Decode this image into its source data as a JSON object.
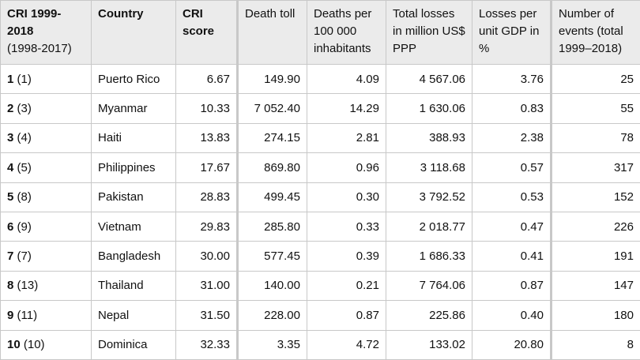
{
  "headers": [
    {
      "bold": "CRI 1999-2018",
      "normal": "(1998-2017)"
    },
    {
      "bold": "Country",
      "normal": ""
    },
    {
      "bold": "CRI score",
      "normal": ""
    },
    {
      "bold": "",
      "normal": "Death toll"
    },
    {
      "bold": "",
      "normal": "Deaths per 100 000 inhabitants"
    },
    {
      "bold": "",
      "normal": "Total losses in million US$ PPP"
    },
    {
      "bold": "",
      "normal": "Losses per unit GDP in %"
    },
    {
      "bold": "",
      "normal": "Number of events (total 1999–2018)"
    }
  ],
  "rows": [
    {
      "rank": "1",
      "prev": "(1)",
      "country": "Puerto Rico",
      "score": "6.67",
      "deaths": "149.90",
      "per100k": "4.09",
      "losses": "4 567.06",
      "gdp": "3.76",
      "events": "25"
    },
    {
      "rank": "2",
      "prev": "(3)",
      "country": "Myanmar",
      "score": "10.33",
      "deaths": "7 052.40",
      "per100k": "14.29",
      "losses": "1 630.06",
      "gdp": "0.83",
      "events": "55"
    },
    {
      "rank": "3",
      "prev": "(4)",
      "country": "Haiti",
      "score": "13.83",
      "deaths": "274.15",
      "per100k": "2.81",
      "losses": "388.93",
      "gdp": "2.38",
      "events": "78"
    },
    {
      "rank": "4",
      "prev": "(5)",
      "country": "Philippines",
      "score": "17.67",
      "deaths": "869.80",
      "per100k": "0.96",
      "losses": "3 118.68",
      "gdp": "0.57",
      "events": "317"
    },
    {
      "rank": "5",
      "prev": "(8)",
      "country": "Pakistan",
      "score": "28.83",
      "deaths": "499.45",
      "per100k": "0.30",
      "losses": "3 792.52",
      "gdp": "0.53",
      "events": "152"
    },
    {
      "rank": "6",
      "prev": "(9)",
      "country": "Vietnam",
      "score": "29.83",
      "deaths": "285.80",
      "per100k": "0.33",
      "losses": "2 018.77",
      "gdp": "0.47",
      "events": "226"
    },
    {
      "rank": "7",
      "prev": "(7)",
      "country": "Bangladesh",
      "score": "30.00",
      "deaths": "577.45",
      "per100k": "0.39",
      "losses": "1 686.33",
      "gdp": "0.41",
      "events": "191"
    },
    {
      "rank": "8",
      "prev": "(13)",
      "country": "Thailand",
      "score": "31.00",
      "deaths": "140.00",
      "per100k": "0.21",
      "losses": "7 764.06",
      "gdp": "0.87",
      "events": "147"
    },
    {
      "rank": "9",
      "prev": "(11)",
      "country": "Nepal",
      "score": "31.50",
      "deaths": "228.00",
      "per100k": "0.87",
      "losses": "225.86",
      "gdp": "0.40",
      "events": "180"
    },
    {
      "rank": "10",
      "prev": "(10)",
      "country": "Dominica",
      "score": "32.33",
      "deaths": "3.35",
      "per100k": "4.72",
      "losses": "133.02",
      "gdp": "20.80",
      "events": "8"
    }
  ]
}
